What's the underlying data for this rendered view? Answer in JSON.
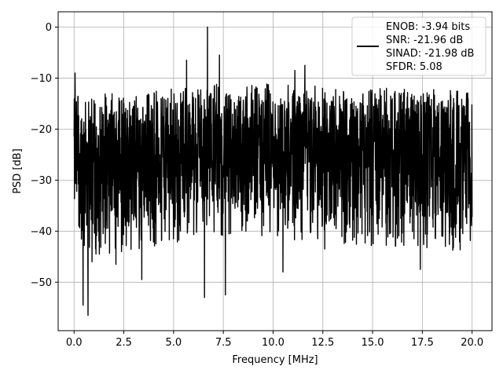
{
  "chart_data": {
    "type": "line",
    "xlabel": "Frequency [MHz]",
    "ylabel": "PSD [dB]",
    "xlim": [
      -0.8,
      21.0
    ],
    "ylim": [
      -59.5,
      3.0
    ],
    "xticks": [
      0.0,
      2.5,
      5.0,
      7.5,
      10.0,
      12.5,
      15.0,
      17.5,
      20.0
    ],
    "xtick_labels": [
      "0.0",
      "2.5",
      "5.0",
      "7.5",
      "10.0",
      "12.5",
      "15.0",
      "17.5",
      "20.0"
    ],
    "yticks": [
      0,
      -10,
      -20,
      -30,
      -40,
      -50
    ],
    "ytick_labels": [
      "0",
      "−10",
      "−20",
      "−30",
      "−40",
      "−50"
    ],
    "grid": true,
    "legend_position": "top-right",
    "legend": [
      "ENOB: -3.94 bits",
      "SNR: -21.96 dB",
      "SINAD: -21.98 dB",
      "SFDR: 5.08"
    ],
    "series": [
      {
        "color": "#000000",
        "x_range": [
          0.0,
          20.0
        ],
        "num_points": 2000,
        "envelope_top_db": [
          -14,
          -15,
          -15,
          -14,
          -14,
          -13,
          -13,
          -13,
          -13,
          -14,
          -14,
          -14,
          -14,
          -14,
          -15
        ],
        "envelope_bottom_db": [
          -40,
          -41,
          -40,
          -39,
          -38,
          -37,
          -37,
          -37,
          -38,
          -38,
          -39,
          -39,
          -39,
          -40,
          -40
        ],
        "peaks": [
          {
            "x": 0.05,
            "y": -9
          },
          {
            "x": 6.7,
            "y": 0
          },
          {
            "x": 7.3,
            "y": -5.5
          },
          {
            "x": 5.65,
            "y": -6.5
          },
          {
            "x": 11.6,
            "y": -7.5
          },
          {
            "x": 11.1,
            "y": -8.5
          }
        ],
        "dips": [
          {
            "x": 0.45,
            "y": -54.5
          },
          {
            "x": 0.7,
            "y": -56.5
          },
          {
            "x": 0.9,
            "y": -46
          },
          {
            "x": 3.4,
            "y": -49.5
          },
          {
            "x": 6.55,
            "y": -53
          },
          {
            "x": 7.6,
            "y": -52.5
          },
          {
            "x": 10.5,
            "y": -48
          },
          {
            "x": 17.4,
            "y": -47.5
          },
          {
            "x": 2.1,
            "y": -46.5
          },
          {
            "x": 12.6,
            "y": -43.5
          }
        ]
      }
    ]
  }
}
